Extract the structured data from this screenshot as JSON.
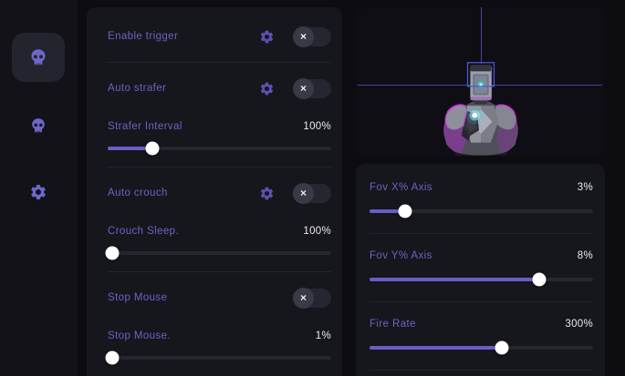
{
  "icons": {
    "toggle_off": "×"
  },
  "sidebar": {
    "items": [
      {
        "id": "legit",
        "icon": "skull-icon",
        "active": true
      },
      {
        "id": "rage",
        "icon": "skull-icon",
        "active": false
      },
      {
        "id": "settings",
        "icon": "gear-icon",
        "active": false
      }
    ]
  },
  "features_panel": {
    "rows": [
      {
        "type": "toggle",
        "label": "Enable trigger",
        "has_settings": true,
        "enabled": false
      },
      {
        "type": "toggle",
        "label": "Auto strafer",
        "has_settings": true,
        "enabled": false
      },
      {
        "type": "slider",
        "label": "Strafer Interval",
        "value": "100%",
        "fill": 20
      },
      {
        "type": "toggle",
        "label": "Auto crouch",
        "has_settings": true,
        "enabled": false
      },
      {
        "type": "slider",
        "label": "Crouch Sleep.",
        "value": "100%",
        "fill": 2
      },
      {
        "type": "toggle",
        "label": "Stop Mouse",
        "has_settings": false,
        "enabled": false
      },
      {
        "type": "slider",
        "label": "Stop Mouse.",
        "value": "1%",
        "fill": 2
      }
    ]
  },
  "preview_panel": {
    "model": "robot-bust",
    "crosshair": true
  },
  "aim_panel": {
    "rows": [
      {
        "label": "Fov X% Axis",
        "value": "3%",
        "fill": 16
      },
      {
        "label": "Fov Y% Axis",
        "value": "8%",
        "fill": 76
      },
      {
        "label": "Fire Rate",
        "value": "300%",
        "fill": 59
      }
    ]
  },
  "colors": {
    "accent": "#665fc7",
    "label": "#6c63c2",
    "magenta": "#c935d8",
    "crosshair": "#575cc8",
    "panel": "#16161d"
  }
}
